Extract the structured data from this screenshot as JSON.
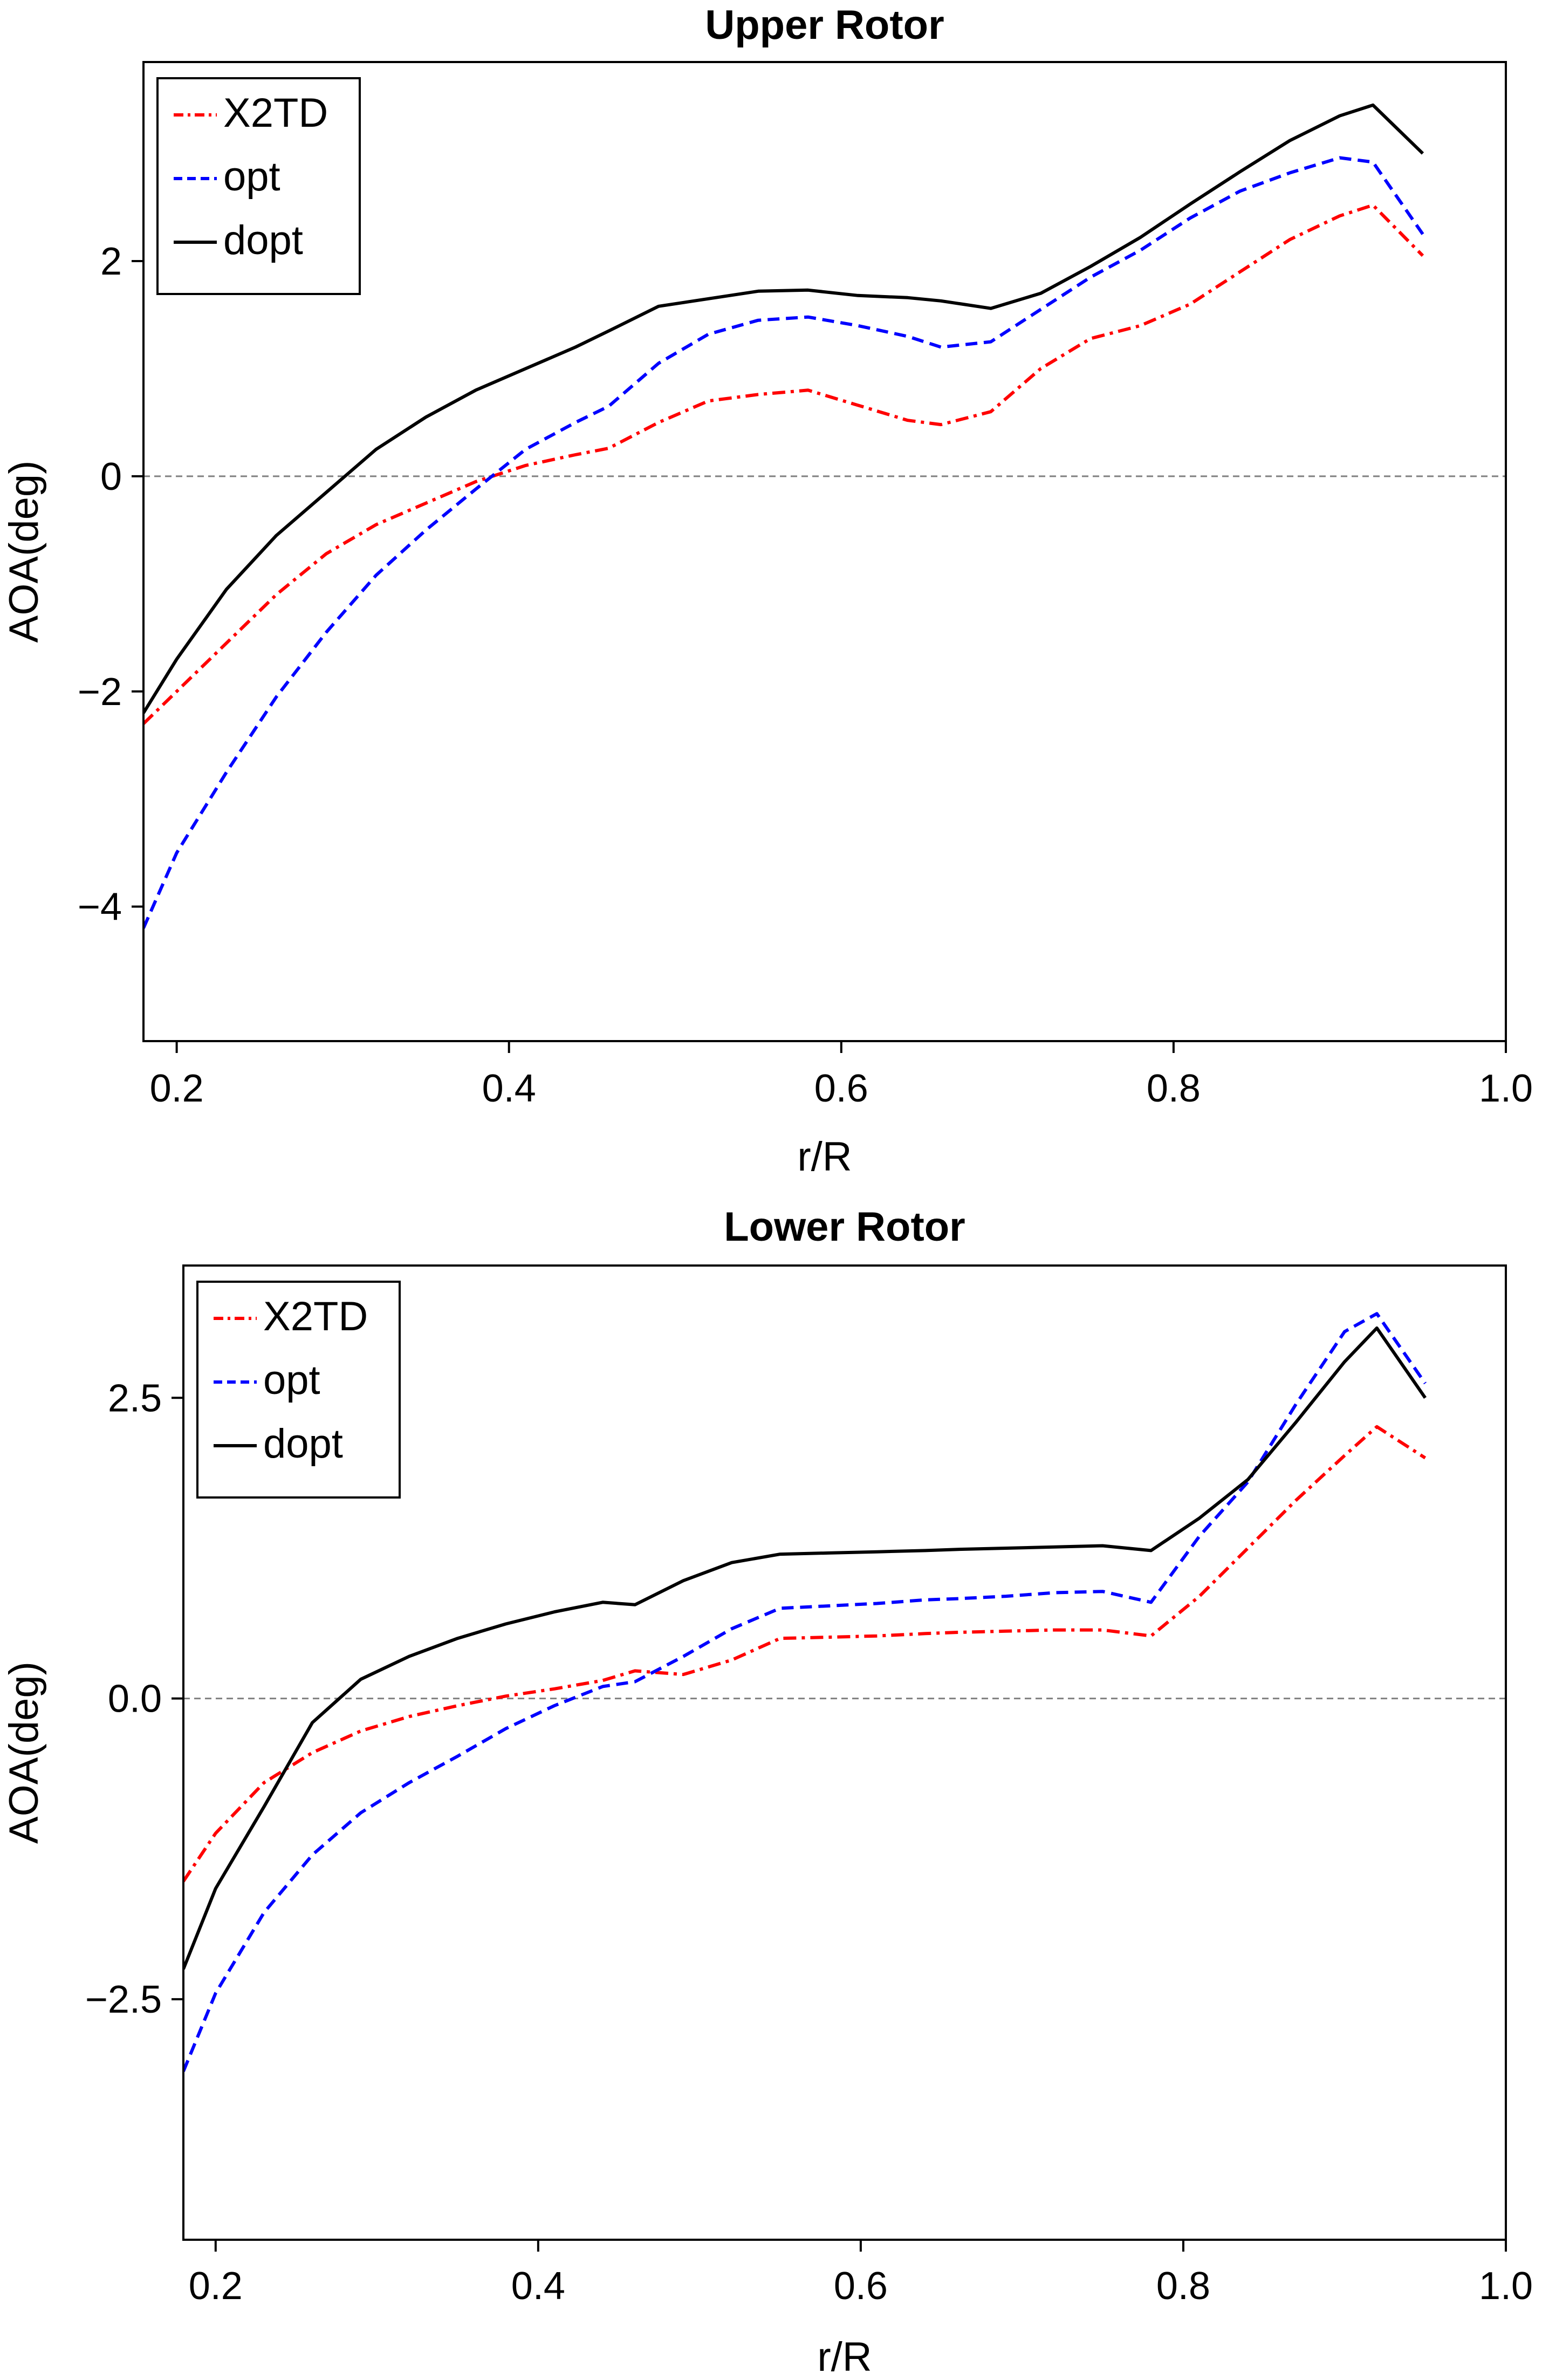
{
  "chart_data": [
    {
      "type": "line",
      "title": "Upper Rotor",
      "xlabel": "r/R",
      "ylabel": "AOA(deg)",
      "xlim": [
        0.18,
        1.0
      ],
      "ylim": [
        -5.25,
        3.85
      ],
      "xticks": [
        0.2,
        0.4,
        0.6,
        0.8,
        1.0
      ],
      "xtick_labels": [
        "0.2",
        "0.4",
        "0.6",
        "0.8",
        "1.0"
      ],
      "yticks": [
        -4,
        -2,
        0,
        2
      ],
      "ytick_labels": [
        "−4",
        "−2",
        "0",
        "2"
      ],
      "zero_line": 0,
      "legend_position": "top-left",
      "series": [
        {
          "name": "X2TD",
          "color": "#ff0000",
          "style": "dash-dot",
          "x": [
            0.18,
            0.23,
            0.26,
            0.29,
            0.32,
            0.35,
            0.38,
            0.41,
            0.44,
            0.46,
            0.49,
            0.52,
            0.55,
            0.58,
            0.61,
            0.64,
            0.66,
            0.69,
            0.72,
            0.75,
            0.78,
            0.81,
            0.84,
            0.87,
            0.9,
            0.92,
            0.95
          ],
          "y": [
            -2.3,
            -1.55,
            -1.1,
            -0.72,
            -0.45,
            -0.25,
            -0.05,
            0.1,
            0.2,
            0.26,
            0.5,
            0.7,
            0.76,
            0.8,
            0.66,
            0.52,
            0.48,
            0.6,
            1.0,
            1.28,
            1.4,
            1.6,
            1.9,
            2.2,
            2.42,
            2.52,
            2.05
          ]
        },
        {
          "name": "opt",
          "color": "#0000ff",
          "style": "dashed",
          "x": [
            0.18,
            0.2,
            0.23,
            0.26,
            0.29,
            0.32,
            0.35,
            0.38,
            0.41,
            0.44,
            0.46,
            0.49,
            0.52,
            0.55,
            0.58,
            0.61,
            0.64,
            0.66,
            0.69,
            0.72,
            0.75,
            0.78,
            0.81,
            0.84,
            0.87,
            0.9,
            0.92,
            0.95
          ],
          "y": [
            -4.2,
            -3.5,
            -2.75,
            -2.05,
            -1.45,
            -0.92,
            -0.5,
            -0.12,
            0.25,
            0.5,
            0.65,
            1.05,
            1.32,
            1.45,
            1.48,
            1.4,
            1.3,
            1.2,
            1.25,
            1.55,
            1.85,
            2.1,
            2.4,
            2.65,
            2.82,
            2.96,
            2.92,
            2.25
          ]
        },
        {
          "name": "dopt",
          "color": "#000000",
          "style": "solid",
          "x": [
            0.18,
            0.2,
            0.23,
            0.26,
            0.29,
            0.32,
            0.35,
            0.38,
            0.41,
            0.44,
            0.46,
            0.49,
            0.52,
            0.55,
            0.58,
            0.61,
            0.64,
            0.66,
            0.69,
            0.72,
            0.75,
            0.78,
            0.81,
            0.84,
            0.87,
            0.9,
            0.92,
            0.95
          ],
          "y": [
            -2.2,
            -1.7,
            -1.05,
            -0.55,
            -0.15,
            0.25,
            0.55,
            0.8,
            1.0,
            1.2,
            1.35,
            1.58,
            1.65,
            1.72,
            1.73,
            1.68,
            1.66,
            1.63,
            1.56,
            1.7,
            1.95,
            2.22,
            2.53,
            2.83,
            3.12,
            3.35,
            3.45,
            3.0
          ]
        }
      ]
    },
    {
      "type": "line",
      "title": "Lower Rotor",
      "xlabel": "r/R",
      "ylabel": "AOA(deg)",
      "xlim": [
        0.18,
        1.0
      ],
      "ylim": [
        -4.5,
        3.6
      ],
      "xticks": [
        0.2,
        0.4,
        0.6,
        0.8,
        1.0
      ],
      "xtick_labels": [
        "0.2",
        "0.4",
        "0.6",
        "0.8",
        "1.0"
      ],
      "yticks": [
        -2.5,
        0.0,
        2.5
      ],
      "ytick_labels": [
        "−2.5",
        "0.0",
        "2.5"
      ],
      "zero_line": 0,
      "legend_position": "top-left",
      "series": [
        {
          "name": "X2TD",
          "color": "#ff0000",
          "style": "dash-dot",
          "x": [
            0.18,
            0.2,
            0.23,
            0.26,
            0.29,
            0.32,
            0.35,
            0.38,
            0.41,
            0.44,
            0.46,
            0.49,
            0.52,
            0.55,
            0.58,
            0.61,
            0.64,
            0.66,
            0.69,
            0.72,
            0.75,
            0.78,
            0.81,
            0.84,
            0.87,
            0.9,
            0.92,
            0.95
          ],
          "y": [
            -1.52,
            -1.12,
            -0.7,
            -0.45,
            -0.27,
            -0.15,
            -0.06,
            0.02,
            0.08,
            0.15,
            0.23,
            0.2,
            0.32,
            0.5,
            0.51,
            0.52,
            0.54,
            0.55,
            0.56,
            0.57,
            0.57,
            0.52,
            0.85,
            1.25,
            1.65,
            2.02,
            2.26,
            2.0
          ]
        },
        {
          "name": "opt",
          "color": "#0000ff",
          "style": "dashed",
          "x": [
            0.18,
            0.2,
            0.23,
            0.26,
            0.29,
            0.32,
            0.35,
            0.38,
            0.41,
            0.44,
            0.46,
            0.49,
            0.52,
            0.55,
            0.58,
            0.61,
            0.64,
            0.66,
            0.69,
            0.72,
            0.75,
            0.78,
            0.81,
            0.84,
            0.87,
            0.9,
            0.92,
            0.95
          ],
          "y": [
            -3.1,
            -2.45,
            -1.78,
            -1.3,
            -0.95,
            -0.7,
            -0.48,
            -0.25,
            -0.06,
            0.1,
            0.14,
            0.35,
            0.58,
            0.75,
            0.77,
            0.79,
            0.82,
            0.83,
            0.85,
            0.88,
            0.89,
            0.8,
            1.35,
            1.8,
            2.45,
            3.05,
            3.2,
            2.62
          ]
        },
        {
          "name": "dopt",
          "color": "#000000",
          "style": "solid",
          "x": [
            0.18,
            0.2,
            0.23,
            0.26,
            0.29,
            0.32,
            0.35,
            0.38,
            0.41,
            0.44,
            0.46,
            0.49,
            0.52,
            0.55,
            0.58,
            0.61,
            0.64,
            0.66,
            0.69,
            0.72,
            0.75,
            0.78,
            0.81,
            0.84,
            0.87,
            0.9,
            0.92,
            0.95
          ],
          "y": [
            -2.25,
            -1.58,
            -0.9,
            -0.2,
            0.16,
            0.35,
            0.5,
            0.62,
            0.72,
            0.8,
            0.78,
            0.98,
            1.13,
            1.2,
            1.21,
            1.22,
            1.23,
            1.24,
            1.25,
            1.26,
            1.27,
            1.23,
            1.5,
            1.82,
            2.3,
            2.8,
            3.08,
            2.5
          ]
        }
      ]
    }
  ]
}
